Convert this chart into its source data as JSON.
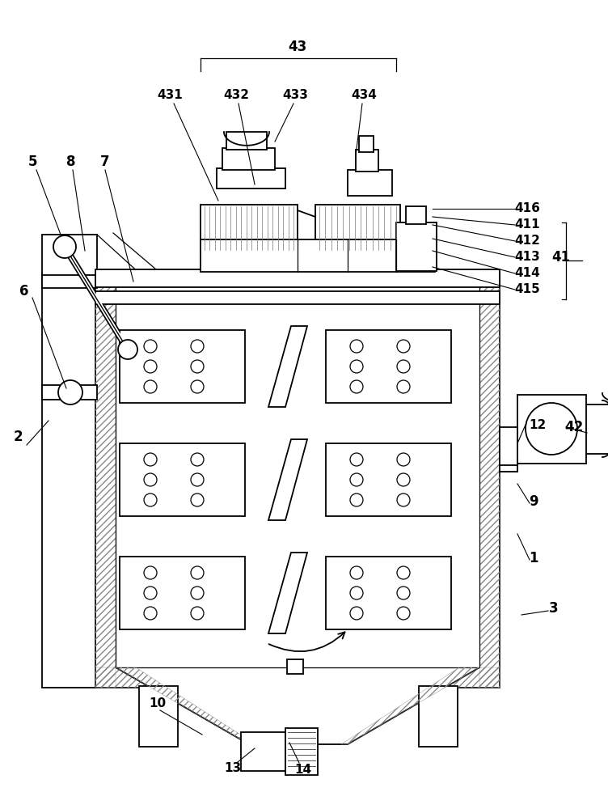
{
  "bg_color": "#ffffff",
  "line_color": "#000000",
  "figsize": [
    7.52,
    10.0
  ],
  "dpi": 100
}
